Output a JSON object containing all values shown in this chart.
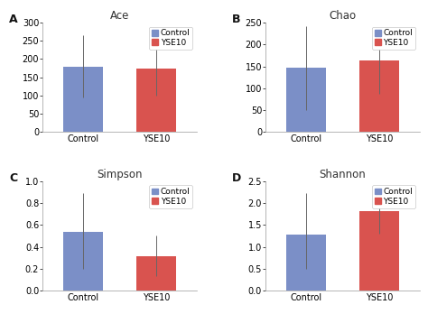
{
  "subplots": [
    {
      "label": "A",
      "title": "Ace",
      "categories": [
        "Control",
        "YSE10"
      ],
      "values": [
        178,
        175
      ],
      "errors_upper": [
        88,
        58
      ],
      "errors_lower": [
        82,
        75
      ],
      "ylim": [
        0,
        300
      ],
      "yticks": [
        0,
        50,
        100,
        150,
        200,
        250,
        300
      ],
      "bar_colors": [
        "#7b8fc7",
        "#d9534f"
      ]
    },
    {
      "label": "B",
      "title": "Chao",
      "categories": [
        "Control",
        "YSE10"
      ],
      "values": [
        147,
        163
      ],
      "errors_upper": [
        95,
        65
      ],
      "errors_lower": [
        97,
        75
      ],
      "ylim": [
        0,
        250
      ],
      "yticks": [
        0,
        50,
        100,
        150,
        200,
        250
      ],
      "bar_colors": [
        "#7b8fc7",
        "#d9534f"
      ]
    },
    {
      "label": "C",
      "title": "Simpson",
      "categories": [
        "Control",
        "YSE10"
      ],
      "values": [
        0.535,
        0.315
      ],
      "errors_upper": [
        0.355,
        0.19
      ],
      "errors_lower": [
        0.335,
        0.185
      ],
      "ylim": [
        0,
        1
      ],
      "yticks": [
        0,
        0.2,
        0.4,
        0.6,
        0.8,
        1.0
      ],
      "bar_colors": [
        "#7b8fc7",
        "#d9534f"
      ]
    },
    {
      "label": "D",
      "title": "Shannon",
      "categories": [
        "Control",
        "YSE10"
      ],
      "values": [
        1.28,
        1.82
      ],
      "errors_upper": [
        0.95,
        0.55
      ],
      "errors_lower": [
        0.78,
        0.52
      ],
      "ylim": [
        0,
        2.5
      ],
      "yticks": [
        0.0,
        0.5,
        1.0,
        1.5,
        2.0,
        2.5
      ],
      "bar_colors": [
        "#7b8fc7",
        "#d9534f"
      ]
    }
  ],
  "legend_labels": [
    "Control",
    "YSE10"
  ],
  "legend_colors": [
    "#7b8fc7",
    "#d9534f"
  ],
  "background_color": "#ffffff",
  "bar_width": 0.55,
  "title_fontsize": 8.5,
  "tick_fontsize": 7,
  "legend_fontsize": 6.5
}
